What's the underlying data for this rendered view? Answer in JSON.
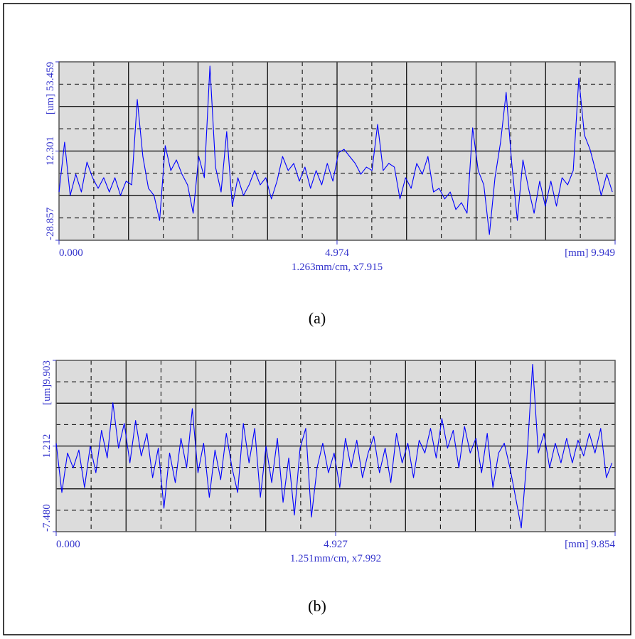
{
  "chart_data": [
    {
      "type": "line",
      "xlabel": "1.263mm/cm, x7.915",
      "caption": "(a)",
      "xlim": [
        0,
        9.949
      ],
      "ylim": [
        -28.857,
        53.459
      ],
      "xticks": [
        {
          "value": 0,
          "label": "0.000"
        },
        4.974,
        {
          "value": 9.949,
          "label": "[mm] 9.949"
        }
      ],
      "yticks": [
        -28.857,
        12.301,
        {
          "value": 53.459,
          "label": "[um] 53.459"
        }
      ],
      "x": [
        0,
        0.1,
        0.2,
        0.3,
        0.4,
        0.5,
        0.6,
        0.7,
        0.8,
        0.9,
        1,
        1.1,
        1.2,
        1.3,
        1.4,
        1.5,
        1.6,
        1.7,
        1.8,
        1.9,
        2,
        2.1,
        2.2,
        2.3,
        2.4,
        2.5,
        2.6,
        2.7,
        2.8,
        2.9,
        3,
        3.1,
        3.2,
        3.3,
        3.4,
        3.5,
        3.6,
        3.7,
        3.8,
        3.9,
        4,
        4.1,
        4.2,
        4.3,
        4.4,
        4.5,
        4.6,
        4.7,
        4.8,
        4.9,
        5,
        5.1,
        5.2,
        5.3,
        5.4,
        5.5,
        5.6,
        5.7,
        5.8,
        5.9,
        6,
        6.1,
        6.2,
        6.3,
        6.4,
        6.5,
        6.6,
        6.7,
        6.8,
        6.9,
        7,
        7.1,
        7.2,
        7.3,
        7.4,
        7.5,
        7.6,
        7.7,
        7.8,
        7.9,
        8,
        8.1,
        8.2,
        8.3,
        8.4,
        8.5,
        8.6,
        8.7,
        8.8,
        8.9,
        9,
        9.1,
        9.2,
        9.3,
        9.4,
        9.5,
        9.6,
        9.7,
        9.8,
        9.9
      ],
      "series": [
        {
          "color": "#0000ff",
          "values": [
            -6.6,
            16.4,
            -8.2,
            1.6,
            -6.6,
            7.2,
            0.0,
            -4.9,
            0.0,
            -6.6,
            0.0,
            -8.2,
            -1.6,
            -3.3,
            36.1,
            9.8,
            -4.9,
            -8.2,
            -19.7,
            14.8,
            3.3,
            8.2,
            1.6,
            -3.3,
            -16.4,
            9.8,
            0.0,
            51.5,
            4.9,
            -6.6,
            21.3,
            -13.1,
            0.0,
            -8.2,
            -3.3,
            3.3,
            -3.3,
            0.0,
            -9.8,
            -1.6,
            9.8,
            3.3,
            6.6,
            -1.6,
            4.9,
            -4.9,
            3.3,
            -3.3,
            6.6,
            -1.6,
            11.5,
            13.1,
            9.8,
            6.6,
            1.6,
            4.9,
            3.3,
            24.6,
            3.3,
            6.6,
            4.9,
            -9.8,
            0.0,
            -4.9,
            6.6,
            1.6,
            9.8,
            -6.6,
            -4.9,
            -9.8,
            -6.6,
            -14.7,
            -11.5,
            -16.4,
            23.0,
            3.3,
            -3.3,
            -26.2,
            0.0,
            16.4,
            39.4,
            6.6,
            -19.7,
            8.2,
            -4.9,
            -16.4,
            -1.6,
            -13.1,
            -1.6,
            -13.1,
            0.0,
            -3.3,
            3.3,
            45.9,
            19.7,
            13.1,
            3.3,
            -8.2,
            1.6,
            -6.6
          ]
        }
      ]
    },
    {
      "type": "line",
      "xlabel": "1.251mm/cm, x7.992",
      "caption": "(b)",
      "xlim": [
        0,
        9.854
      ],
      "ylim": [
        -7.48,
        9.903
      ],
      "xticks": [
        {
          "value": 0,
          "label": "0.000"
        },
        4.927,
        {
          "value": 9.854,
          "label": "[mm] 9.854"
        }
      ],
      "yticks": [
        {
          "value": -7.48,
          "label": "-7.480"
        },
        1.212,
        {
          "value": 9.903,
          "label": "[um]9.903"
        }
      ],
      "x": [
        0,
        0.1,
        0.2,
        0.3,
        0.4,
        0.5,
        0.6,
        0.7,
        0.8,
        0.9,
        1,
        1.1,
        1.2,
        1.3,
        1.4,
        1.5,
        1.6,
        1.7,
        1.8,
        1.9,
        2,
        2.1,
        2.2,
        2.3,
        2.4,
        2.5,
        2.6,
        2.7,
        2.8,
        2.9,
        3,
        3.1,
        3.2,
        3.3,
        3.4,
        3.5,
        3.6,
        3.7,
        3.8,
        3.9,
        4,
        4.1,
        4.2,
        4.3,
        4.4,
        4.5,
        4.6,
        4.7,
        4.8,
        4.9,
        5,
        5.1,
        5.2,
        5.3,
        5.4,
        5.5,
        5.6,
        5.7,
        5.8,
        5.9,
        6,
        6.1,
        6.2,
        6.3,
        6.4,
        6.5,
        6.6,
        6.7,
        6.8,
        6.9,
        7,
        7.1,
        7.2,
        7.3,
        7.4,
        7.5,
        7.6,
        7.7,
        7.8,
        7.9,
        8,
        8.1,
        8.2,
        8.3,
        8.4,
        8.5,
        8.6,
        8.7,
        8.8,
        8.9,
        9,
        9.1,
        9.2,
        9.3,
        9.4,
        9.5,
        9.6,
        9.7,
        9.8
      ],
      "series": [
        {
          "color": "#0000ff",
          "values": [
            1.5,
            -3.5,
            0.5,
            -1.0,
            0.8,
            -3.0,
            1.2,
            -1.5,
            2.8,
            0.0,
            5.6,
            1.0,
            3.5,
            -0.5,
            3.8,
            0.2,
            2.5,
            -2.0,
            1.0,
            -5.1,
            0.5,
            -2.5,
            2.0,
            -1.0,
            5.0,
            -1.5,
            1.5,
            -4.0,
            0.8,
            -2.2,
            2.5,
            -1.0,
            -3.5,
            3.5,
            -0.5,
            3.0,
            -4.0,
            1.2,
            -2.5,
            2.0,
            -4.5,
            0.0,
            -5.8,
            1.0,
            3.0,
            -6.0,
            -1.0,
            1.5,
            -1.5,
            0.5,
            -3.0,
            2.0,
            -1.0,
            1.8,
            -2.0,
            0.5,
            2.2,
            -1.5,
            1.0,
            -2.5,
            2.5,
            -0.5,
            1.5,
            -2.0,
            1.8,
            0.5,
            3.0,
            0.0,
            4.0,
            1.0,
            2.8,
            -1.0,
            3.2,
            0.5,
            2.0,
            -1.5,
            2.5,
            -3.0,
            0.5,
            1.5,
            -1.0,
            -4.0,
            -7.1,
            0.0,
            9.5,
            0.5,
            2.5,
            -1.0,
            1.5,
            -0.5,
            2.0,
            -0.5,
            1.8,
            0.2,
            2.5,
            0.5,
            3.0,
            -2.0,
            -0.5
          ]
        }
      ]
    }
  ]
}
